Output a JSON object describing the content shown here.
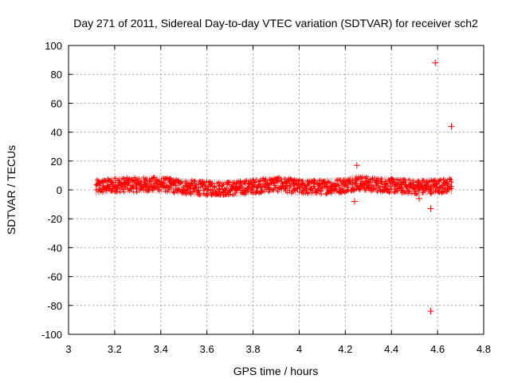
{
  "chart_data": {
    "type": "scatter",
    "title": "Day 271 of 2011, Sidereal Day-to-day VTEC variation (SDTVAR) for receiver sch2",
    "xlabel": "GPS time / hours",
    "ylabel": "SDTVAR / TECUs",
    "xlim": [
      3,
      4.8
    ],
    "ylim": [
      -100,
      100
    ],
    "x_ticks": [
      3,
      3.2,
      3.4,
      3.6,
      3.8,
      4,
      4.2,
      4.4,
      4.6,
      4.8
    ],
    "x_tick_labels": [
      "3",
      "3.2",
      "3.4",
      "3.6",
      "3.8",
      "4",
      "4.2",
      "4.4",
      "4.6",
      "4.8"
    ],
    "y_ticks": [
      -100,
      -80,
      -60,
      -40,
      -20,
      0,
      20,
      40,
      60,
      80,
      100
    ],
    "y_tick_labels": [
      "-100",
      "-80",
      "-60",
      "-40",
      "-20",
      "0",
      "20",
      "40",
      "60",
      "80",
      "100"
    ],
    "grid": true,
    "marker": "plus",
    "color": "#ff0000",
    "series": [
      {
        "name": "sch2",
        "x_range": [
          3.12,
          4.66
        ],
        "band_center": [
          [
            3.12,
            2
          ],
          [
            3.2,
            3.5
          ],
          [
            3.3,
            3.5
          ],
          [
            3.4,
            4
          ],
          [
            3.5,
            2
          ],
          [
            3.6,
            1
          ],
          [
            3.7,
            1
          ],
          [
            3.8,
            2.5
          ],
          [
            3.9,
            4
          ],
          [
            4.0,
            2
          ],
          [
            4.1,
            2
          ],
          [
            4.2,
            3
          ],
          [
            4.25,
            5
          ],
          [
            4.3,
            4
          ],
          [
            4.4,
            3
          ],
          [
            4.5,
            2
          ],
          [
            4.66,
            3
          ]
        ],
        "band_half_width": 5,
        "outliers": [
          {
            "x": 4.59,
            "y": 88
          },
          {
            "x": 4.66,
            "y": 44
          },
          {
            "x": 4.57,
            "y": -84
          },
          {
            "x": 4.57,
            "y": -13
          },
          {
            "x": 4.24,
            "y": -8
          },
          {
            "x": 4.25,
            "y": 17
          },
          {
            "x": 4.52,
            "y": -6
          }
        ]
      }
    ]
  }
}
